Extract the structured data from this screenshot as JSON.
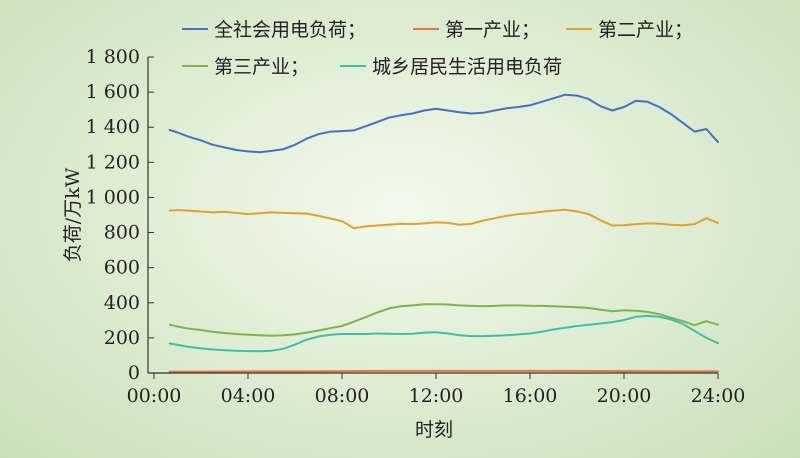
{
  "chart_data": {
    "type": "line",
    "xlabel": "时刻",
    "ylabel": "负荷/万kW",
    "xlim": [
      0.667,
      24
    ],
    "ylim": [
      0,
      1800
    ],
    "x_ticks": [
      "00:00",
      "04:00",
      "08:00",
      "12:00",
      "16:00",
      "20:00",
      "24:00"
    ],
    "x_tick_values": [
      0,
      4,
      8,
      12,
      16,
      20,
      24
    ],
    "y_ticks": [
      "0",
      "200",
      "400",
      "600",
      "800",
      "1 000",
      "1 200",
      "1 400",
      "1 600",
      "1 800"
    ],
    "y_tick_values": [
      0,
      200,
      400,
      600,
      800,
      1000,
      1200,
      1400,
      1600,
      1800
    ],
    "grid": false,
    "legend_position": "top",
    "series": [
      {
        "name": "全社会用电负荷；",
        "color": "#4472c4",
        "x": [
          0.667,
          1,
          1.5,
          2,
          2.5,
          3,
          3.5,
          4,
          4.5,
          5,
          5.5,
          6,
          6.5,
          7,
          7.5,
          8,
          8.5,
          9,
          9.5,
          10,
          10.5,
          11,
          11.5,
          12,
          12.5,
          13,
          13.5,
          14,
          14.5,
          15,
          15.5,
          16,
          16.5,
          17,
          17.5,
          18,
          18.5,
          19,
          19.5,
          20,
          20.5,
          21,
          21.5,
          22,
          22.5,
          23,
          23.5,
          24
        ],
        "y": [
          1385,
          1370,
          1345,
          1325,
          1300,
          1285,
          1270,
          1262,
          1258,
          1265,
          1275,
          1300,
          1335,
          1360,
          1375,
          1378,
          1382,
          1405,
          1430,
          1455,
          1468,
          1478,
          1495,
          1505,
          1495,
          1485,
          1478,
          1482,
          1495,
          1508,
          1515,
          1525,
          1545,
          1565,
          1585,
          1580,
          1560,
          1520,
          1495,
          1515,
          1550,
          1545,
          1515,
          1475,
          1425,
          1375,
          1390,
          1315
        ]
      },
      {
        "name": "第一产业；",
        "color": "#e07b39",
        "x": [
          0.667,
          2,
          4,
          6,
          8,
          10,
          12,
          14,
          16,
          18,
          20,
          22,
          24
        ],
        "y": [
          8,
          8,
          9,
          9,
          11,
          12,
          12,
          12,
          12,
          12,
          11,
          10,
          9
        ]
      },
      {
        "name": "第二产业；",
        "color": "#e4a12f",
        "x": [
          0.667,
          1,
          1.5,
          2,
          2.5,
          3,
          3.5,
          4,
          4.5,
          5,
          5.5,
          6,
          6.5,
          7,
          7.5,
          8,
          8.5,
          9,
          9.5,
          10,
          10.5,
          11,
          11.5,
          12,
          12.5,
          13,
          13.5,
          14,
          14.5,
          15,
          15.5,
          16,
          16.5,
          17,
          17.5,
          18,
          18.5,
          19,
          19.5,
          20,
          20.5,
          21,
          21.5,
          22,
          22.5,
          23,
          23.5,
          24
        ],
        "y": [
          925,
          928,
          925,
          920,
          915,
          918,
          912,
          905,
          910,
          915,
          912,
          910,
          908,
          895,
          880,
          865,
          825,
          835,
          840,
          845,
          850,
          848,
          852,
          858,
          855,
          845,
          850,
          868,
          882,
          895,
          905,
          910,
          918,
          925,
          930,
          920,
          905,
          870,
          840,
          842,
          848,
          852,
          850,
          845,
          842,
          848,
          882,
          855
        ]
      },
      {
        "name": "第三产业；",
        "color": "#7ab648",
        "x": [
          0.667,
          1,
          1.5,
          2,
          2.5,
          3,
          3.5,
          4,
          4.5,
          5,
          5.5,
          6,
          6.5,
          7,
          7.5,
          8,
          8.5,
          9,
          9.5,
          10,
          10.5,
          11,
          11.5,
          12,
          12.5,
          13,
          13.5,
          14,
          14.5,
          15,
          15.5,
          16,
          16.5,
          17,
          17.5,
          18,
          18.5,
          19,
          19.5,
          20,
          20.5,
          21,
          21.5,
          22,
          22.5,
          23,
          23.5,
          24
        ],
        "y": [
          275,
          265,
          252,
          245,
          235,
          228,
          222,
          218,
          215,
          212,
          215,
          220,
          230,
          242,
          255,
          268,
          292,
          318,
          345,
          368,
          380,
          385,
          392,
          392,
          390,
          385,
          382,
          380,
          382,
          385,
          385,
          383,
          382,
          380,
          377,
          375,
          370,
          360,
          352,
          358,
          355,
          348,
          335,
          315,
          295,
          272,
          295,
          275
        ]
      },
      {
        "name": "城乡居民生活用电负荷",
        "color": "#3fbfaa",
        "x": [
          0.667,
          1,
          1.5,
          2,
          2.5,
          3,
          3.5,
          4,
          4.5,
          5,
          5.5,
          6,
          6.5,
          7,
          7.5,
          8,
          8.5,
          9,
          9.5,
          10,
          10.5,
          11,
          11.5,
          12,
          12.5,
          13,
          13.5,
          14,
          14.5,
          15,
          15.5,
          16,
          16.5,
          17,
          17.5,
          18,
          18.5,
          19,
          19.5,
          20,
          20.5,
          21,
          21.5,
          22,
          22.5,
          23,
          23.5,
          24
        ],
        "y": [
          168,
          160,
          148,
          140,
          134,
          130,
          127,
          125,
          124,
          127,
          138,
          162,
          190,
          208,
          218,
          222,
          222,
          222,
          225,
          224,
          222,
          224,
          230,
          232,
          225,
          215,
          210,
          210,
          212,
          215,
          220,
          225,
          235,
          248,
          258,
          268,
          275,
          282,
          290,
          302,
          320,
          325,
          320,
          305,
          280,
          240,
          200,
          170
        ]
      }
    ]
  }
}
